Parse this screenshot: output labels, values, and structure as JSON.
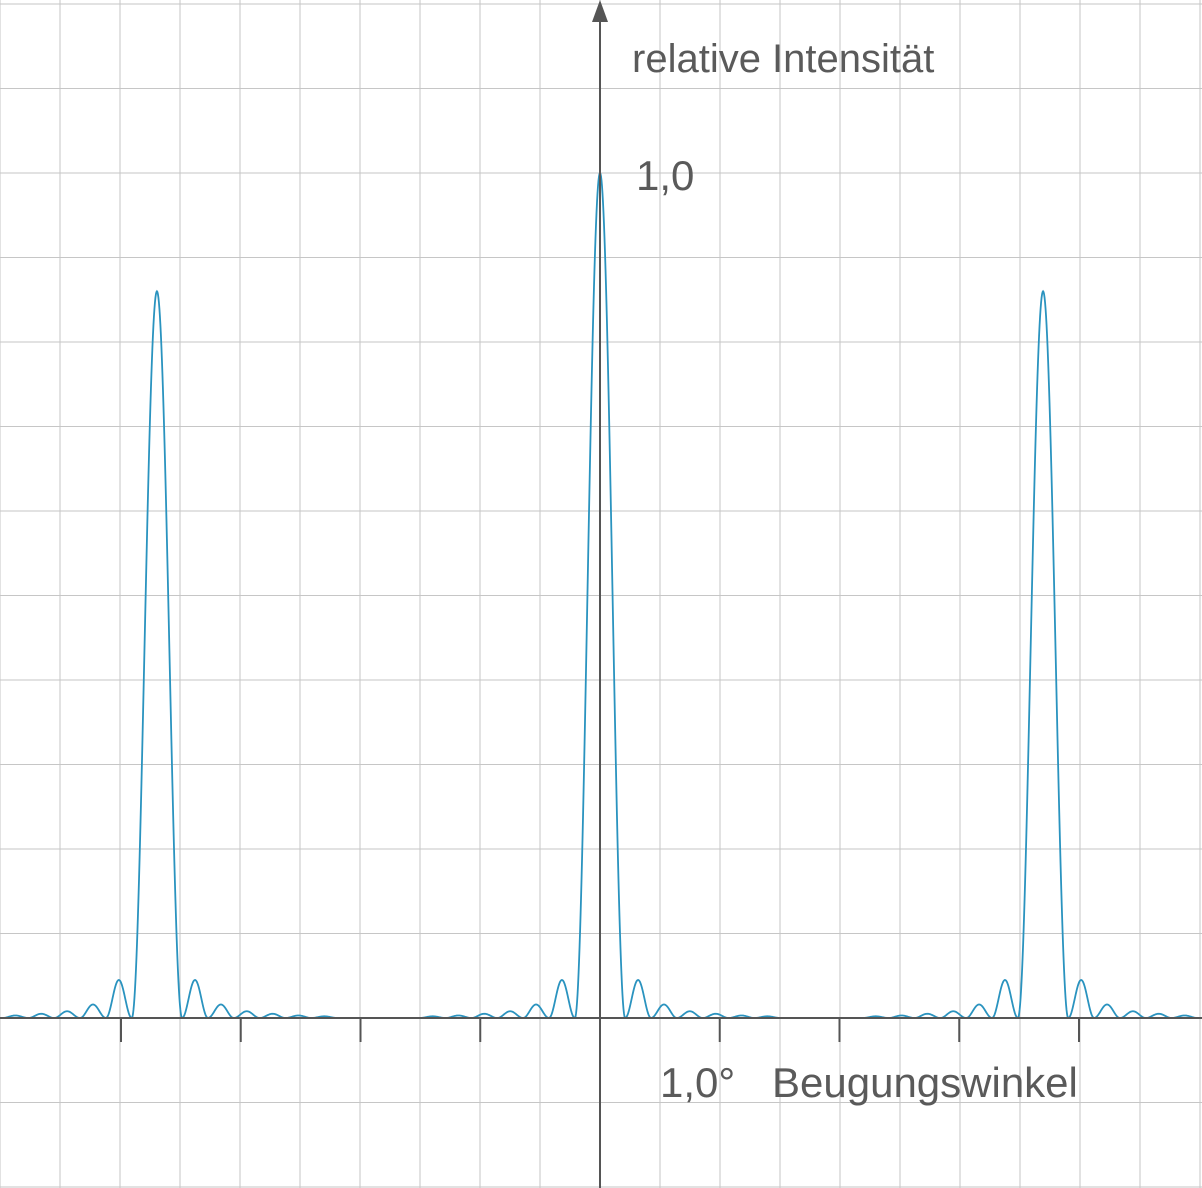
{
  "chart_data": {
    "type": "line",
    "ylabel": "relative Intensität",
    "y_tick_label": "1,0",
    "x_tick_label": "1,0°",
    "xlabel": "Beugungswinkel",
    "xlim": [
      -2.5,
      2.5
    ],
    "ylim": [
      -0.2,
      1.2
    ],
    "grid": true,
    "colors": {
      "curve": "#2a93bf",
      "grid": "#c6c6c6",
      "axis": "#555555"
    },
    "series": [
      {
        "peaks": [
          {
            "x": -1.85,
            "y": 0.86
          },
          {
            "x": 0.0,
            "y": 1.0
          },
          {
            "x": 1.85,
            "y": 0.86
          }
        ],
        "side_maxima_relative": [
          0.045,
          0.016,
          0.008,
          0.005,
          0.003,
          0.002
        ]
      }
    ]
  }
}
